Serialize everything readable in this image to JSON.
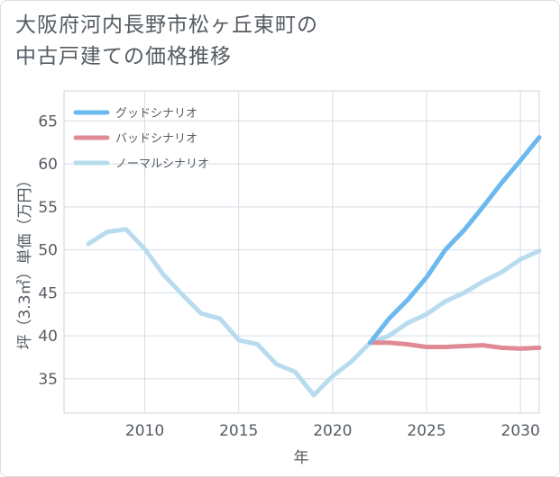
{
  "title_line1": "大阪府河内長野市松ヶ丘東町の",
  "title_line2": "中古戸建ての価格推移",
  "chart_data": {
    "type": "line",
    "title": "大阪府河内長野市松ヶ丘東町の中古戸建ての価格推移",
    "xlabel": "年",
    "ylabel": "坪（3.3㎡）単価（万円）",
    "xlim": [
      2005.7,
      2031
    ],
    "ylim": [
      31,
      68.5
    ],
    "x_ticks": [
      2010,
      2015,
      2020,
      2025,
      2030
    ],
    "y_ticks": [
      35,
      40,
      45,
      50,
      55,
      60,
      65
    ],
    "grid": true,
    "legend_position": "top-left",
    "series": [
      {
        "name": "グッドシナリオ",
        "color": "#6bb9ee",
        "x": [
          2022,
          2023,
          2024,
          2025,
          2026,
          2027,
          2028,
          2029,
          2030,
          2031
        ],
        "values": [
          39.2,
          42.0,
          44.2,
          46.8,
          50.0,
          52.3,
          55.0,
          57.8,
          60.4,
          63.1
        ]
      },
      {
        "name": "バッドシナリオ",
        "color": "#e08a95",
        "x": [
          2022,
          2023,
          2024,
          2025,
          2026,
          2027,
          2028,
          2029,
          2030,
          2031
        ],
        "values": [
          39.2,
          39.2,
          39.0,
          38.7,
          38.7,
          38.8,
          38.9,
          38.6,
          38.5,
          38.6
        ]
      },
      {
        "name": "ノーマルシナリオ",
        "color": "#b8dcee",
        "x": [
          2007,
          2008,
          2009,
          2010,
          2011,
          2012,
          2013,
          2014,
          2015,
          2016,
          2017,
          2018,
          2019,
          2020,
          2021,
          2022,
          2023,
          2024,
          2025,
          2026,
          2027,
          2028,
          2029,
          2030,
          2031
        ],
        "values": [
          50.7,
          52.1,
          52.4,
          50.1,
          47.1,
          44.8,
          42.6,
          42.0,
          39.5,
          39.0,
          36.7,
          35.8,
          33.1,
          35.3,
          37.0,
          39.2,
          40.0,
          41.5,
          42.5,
          44.0,
          45.0,
          46.3,
          47.4,
          48.9,
          49.9
        ]
      }
    ]
  }
}
